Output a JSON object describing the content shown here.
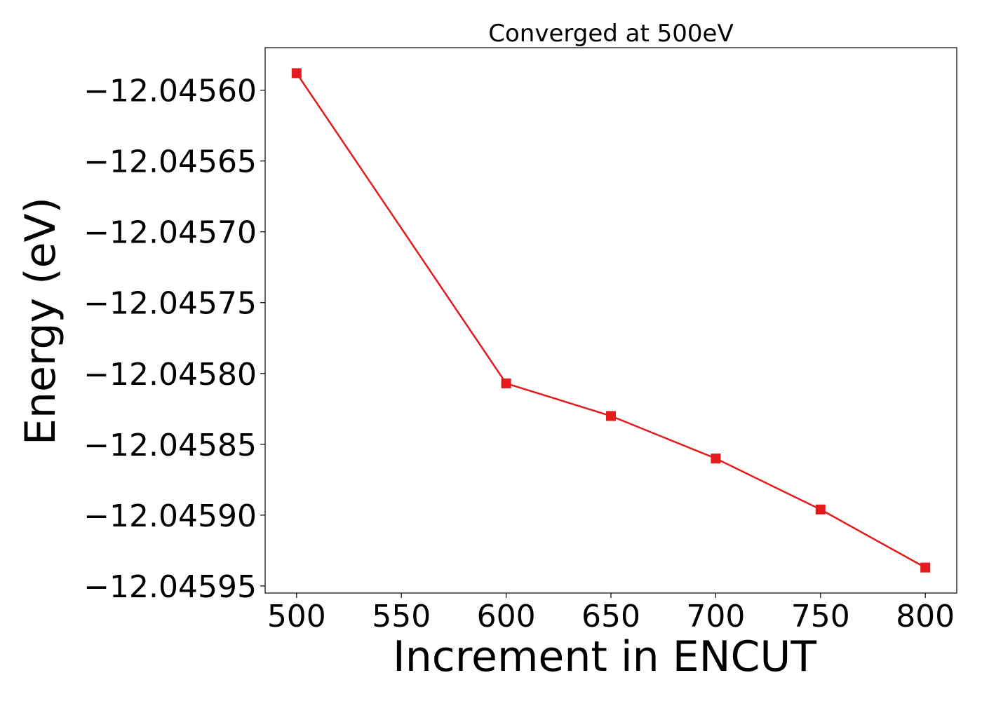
{
  "chart_data": {
    "type": "line",
    "title": "Converged at 500eV",
    "xlabel": "Increment in ENCUT",
    "ylabel": "Energy (eV)",
    "x": [
      500,
      600,
      650,
      700,
      750,
      800
    ],
    "series": [
      {
        "values": [
          -12.045588,
          -12.045807,
          -12.04583,
          -12.04586,
          -12.045896,
          -12.045937
        ],
        "color": "#e41a1c",
        "marker": "square"
      }
    ],
    "xticks": [
      500,
      550,
      600,
      650,
      700,
      750,
      800
    ],
    "xtick_labels": [
      "500",
      "550",
      "600",
      "650",
      "700",
      "750",
      "800"
    ],
    "yticks": [
      -12.0456,
      -12.04565,
      -12.0457,
      -12.04575,
      -12.0458,
      -12.04585,
      -12.0459,
      -12.04595
    ],
    "ytick_labels": [
      "−12.04560",
      "−12.04565",
      "−12.04570",
      "−12.04575",
      "−12.04580",
      "−12.04585",
      "−12.04590",
      "−12.04595"
    ],
    "xlim": [
      485,
      815
    ],
    "ylim": [
      -12.045955,
      -12.04557
    ],
    "grid": false,
    "legend": "none"
  }
}
